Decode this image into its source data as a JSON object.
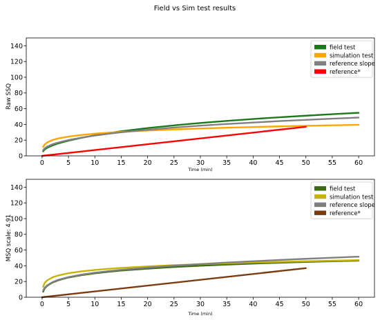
{
  "figure_title": "Field vs Sim test results",
  "chart_data": [
    {
      "type": "line",
      "title": "",
      "xlabel": "Time (min)",
      "ylabel": "Raw SSQ",
      "xlim": [
        -3,
        63
      ],
      "ylim": [
        0,
        150
      ],
      "xticks": [
        "0",
        "5",
        "10",
        "15",
        "20",
        "25",
        "30",
        "35",
        "40",
        "45",
        "50",
        "55",
        "60"
      ],
      "yticks": [
        "0",
        "20",
        "40",
        "60",
        "80",
        "100",
        "120",
        "140"
      ],
      "grid": false,
      "legend_position": "top-right",
      "series": [
        {
          "name": "field test",
          "color": "#1a7a1a",
          "x": [
            0.2,
            0.5,
            1,
            2,
            3,
            5,
            7.5,
            10,
            12.5,
            15,
            20,
            25,
            30,
            35,
            40,
            45,
            50,
            55,
            60
          ],
          "y": [
            5.7,
            8.2,
            10.4,
            13.4,
            15.7,
            19.3,
            23.0,
            26.2,
            28.9,
            31.3,
            35.4,
            38.8,
            41.8,
            44.5,
            46.9,
            49.1,
            51.1,
            53.0,
            54.8
          ]
        },
        {
          "name": "simulation test",
          "color": "#ffa500",
          "x": [
            0.2,
            0.5,
            1,
            2,
            3,
            5,
            7.5,
            10,
            12.5,
            15,
            20,
            25,
            30,
            35,
            40,
            45,
            50,
            55,
            60
          ],
          "y": [
            11.2,
            14.5,
            17.2,
            20.2,
            22.1,
            24.5,
            26.6,
            28.2,
            29.4,
            30.5,
            32.2,
            33.6,
            34.8,
            35.8,
            36.7,
            37.5,
            38.2,
            38.9,
            39.5
          ]
        },
        {
          "name": "reference slope",
          "color": "#808080",
          "x": [
            0.2,
            0.5,
            1,
            2,
            3,
            5,
            7.5,
            10,
            12.5,
            15,
            20,
            25,
            30,
            35,
            40,
            45,
            50,
            55,
            60
          ],
          "y": [
            7.1,
            9.6,
            11.9,
            14.8,
            16.9,
            20.1,
            23.2,
            25.8,
            28.0,
            30.0,
            33.2,
            36.0,
            38.4,
            40.5,
            42.4,
            44.2,
            45.8,
            47.3,
            48.7
          ]
        },
        {
          "name": "reference*",
          "color": "#ff0000",
          "x": [
            0,
            50
          ],
          "y": [
            0,
            37
          ]
        }
      ]
    },
    {
      "type": "line",
      "title": "",
      "xlabel": "Time (min)",
      "ylabel": "MSQ scale: 4.91",
      "xlim": [
        -3,
        63
      ],
      "ylim": [
        0,
        150
      ],
      "xticks": [
        "0",
        "5",
        "10",
        "15",
        "20",
        "25",
        "30",
        "35",
        "40",
        "45",
        "50",
        "55",
        "60"
      ],
      "yticks": [
        "0",
        "20",
        "40",
        "60",
        "80",
        "100",
        "120",
        "140"
      ],
      "grid": false,
      "legend_position": "top-right",
      "series": [
        {
          "name": "field test",
          "color": "#3d6b12",
          "x": [
            0.2,
            0.5,
            1,
            2,
            3,
            5,
            7.5,
            10,
            12.5,
            15,
            20,
            25,
            30,
            35,
            40,
            45,
            50,
            55,
            60
          ],
          "y": [
            7.0,
            11.4,
            14.7,
            18.8,
            21.4,
            25.1,
            28.1,
            30.4,
            32.3,
            33.9,
            36.4,
            38.4,
            40.1,
            41.5,
            42.8,
            43.9,
            44.9,
            45.8,
            46.6
          ]
        },
        {
          "name": "simulation test",
          "color": "#c8b400",
          "x": [
            0.2,
            0.5,
            1,
            2,
            3,
            5,
            7.5,
            10,
            12.5,
            15,
            20,
            25,
            30,
            35,
            40,
            45,
            50,
            55,
            60
          ],
          "y": [
            13.4,
            18.3,
            21.7,
            25.4,
            27.6,
            30.5,
            32.9,
            34.7,
            36.1,
            37.3,
            39.2,
            40.8,
            42.1,
            43.2,
            44.2,
            45.0,
            45.8,
            46.5,
            47.2
          ]
        },
        {
          "name": "reference slope",
          "color": "#808080",
          "x": [
            0.2,
            0.5,
            1,
            2,
            3,
            5,
            7.5,
            10,
            12.5,
            15,
            20,
            25,
            30,
            35,
            40,
            45,
            50,
            55,
            60
          ],
          "y": [
            8.7,
            12.3,
            15.3,
            19.3,
            22.0,
            25.6,
            28.8,
            31.2,
            33.2,
            34.9,
            37.7,
            40.1,
            42.2,
            44.1,
            45.8,
            47.4,
            48.9,
            50.3,
            51.6
          ]
        },
        {
          "name": "reference*",
          "color": "#7a3b10",
          "x": [
            0,
            50
          ],
          "y": [
            0,
            37
          ]
        }
      ]
    }
  ]
}
